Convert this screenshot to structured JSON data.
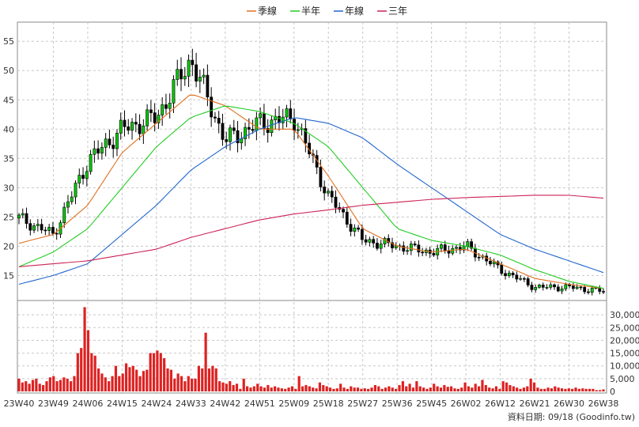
{
  "legend": [
    {
      "label": "季線",
      "color": "#e07020"
    },
    {
      "label": "半年",
      "color": "#22cc22"
    },
    {
      "label": "年線",
      "color": "#2266cc"
    },
    {
      "label": "三年",
      "color": "#cc2255"
    }
  ],
  "footer": "資料日期: 09/18  (Goodinfo.tw)",
  "x_ticks": [
    "23W40",
    "23W49",
    "24W06",
    "24W15",
    "24W24",
    "24W33",
    "24W42",
    "24W51",
    "25W09",
    "25W18",
    "25W27",
    "25W36",
    "25W45",
    "26W02",
    "26W12",
    "26W21",
    "26W30",
    "26W38"
  ],
  "chart_data": [
    {
      "type": "candlestick",
      "ylim": [
        11,
        58
      ],
      "yticks": [
        15,
        20,
        25,
        30,
        35,
        40,
        45,
        50,
        55
      ],
      "grid": true,
      "legend_position": "top-center",
      "up_color": "#00cc00",
      "down_color": "#000000",
      "x": [
        "23W40",
        "23W49",
        "24W06",
        "24W15",
        "24W24",
        "24W33",
        "24W42",
        "24W51",
        "25W09",
        "25W18",
        "25W27",
        "25W36",
        "25W45",
        "26W02",
        "26W12",
        "26W21",
        "26W30",
        "26W38"
      ],
      "close": [
        24.8,
        22.0,
        34.5,
        40.0,
        42.0,
        52.0,
        38.0,
        41.0,
        42.0,
        28.5,
        21.0,
        20.0,
        19.0,
        20.0,
        16.0,
        13.0,
        13.0,
        12.3
      ],
      "series": [
        {
          "name": "季線",
          "values": [
            20.5,
            22.0,
            27.0,
            36.0,
            41.0,
            46.0,
            44.0,
            40.0,
            40.0,
            32.0,
            23.0,
            20.0,
            19.0,
            19.5,
            17.0,
            14.5,
            13.5,
            12.8
          ]
        },
        {
          "name": "半年",
          "values": [
            16.5,
            19.0,
            23.0,
            30.0,
            37.0,
            42.0,
            44.0,
            43.0,
            41.0,
            37.0,
            30.0,
            23.0,
            21.0,
            20.0,
            18.5,
            16.0,
            14.0,
            12.8
          ]
        },
        {
          "name": "年線",
          "values": [
            13.5,
            15.0,
            17.0,
            22.0,
            27.0,
            33.0,
            37.0,
            40.0,
            42.0,
            41.0,
            38.5,
            34.0,
            30.0,
            26.0,
            22.0,
            19.5,
            17.5,
            15.5
          ]
        },
        {
          "name": "三年",
          "values": [
            16.5,
            17.0,
            17.5,
            18.5,
            19.5,
            21.5,
            23.0,
            24.5,
            25.5,
            26.2,
            27.0,
            27.5,
            28.0,
            28.3,
            28.5,
            28.7,
            28.7,
            28.2
          ]
        }
      ]
    },
    {
      "type": "bar",
      "ylim": [
        0,
        35000
      ],
      "yticks": [
        0,
        5000,
        10000,
        15000,
        20000,
        25000,
        30000
      ],
      "ytick_labels": [
        "0",
        "5,000",
        "10,000",
        "15,000",
        "20,000",
        "25,000",
        "30,000"
      ],
      "color": "#dd2222",
      "values": [
        5000,
        3500,
        4000,
        3000,
        4500,
        5000,
        3000,
        2500,
        4000,
        5500,
        6000,
        4000,
        4500,
        5500,
        5000,
        4000,
        6000,
        15000,
        17000,
        33000,
        24000,
        15000,
        14000,
        9000,
        7000,
        5500,
        4000,
        6000,
        10000,
        6000,
        7000,
        11000,
        9500,
        10000,
        8500,
        6000,
        8000,
        8500,
        15000,
        15000,
        16000,
        15000,
        13000,
        9000,
        8500,
        5000,
        7000,
        6000,
        4000,
        6000,
        5000,
        5000,
        10000,
        9000,
        23000,
        9000,
        10000,
        9000,
        4000,
        3500,
        3000,
        4000,
        2500,
        3000,
        1000,
        5000,
        2000,
        1500,
        2000,
        3000,
        2000,
        1500,
        2500,
        1500,
        2000,
        1500,
        1200,
        1000,
        1500,
        2000,
        1000,
        6000,
        2000,
        2500,
        2000,
        1500,
        1200,
        3500,
        2500,
        2000,
        1500,
        1000,
        1200,
        3000,
        1500,
        1000,
        2000,
        1500,
        1500,
        1000,
        1200,
        1000,
        1500,
        2500,
        2000,
        1000,
        1500,
        2000,
        1500,
        1000,
        2500,
        4000,
        2000,
        3000,
        1500,
        4000,
        2000,
        1500,
        1000,
        1500,
        3000,
        2000,
        1500,
        2500,
        1800,
        2000,
        1200,
        1000,
        1500,
        3500,
        2000,
        1500,
        3000,
        2000,
        4500,
        2500,
        1500,
        1200,
        2000,
        1000,
        4000,
        3500,
        2500,
        2000,
        1500,
        1000,
        1500,
        2000,
        5000,
        3500,
        1500,
        1000,
        1000,
        1500,
        1200,
        2000,
        1500,
        1200,
        1000,
        1200,
        1000,
        1500,
        1000,
        1200,
        1000,
        1000,
        1000,
        500,
        500,
        800
      ]
    }
  ]
}
